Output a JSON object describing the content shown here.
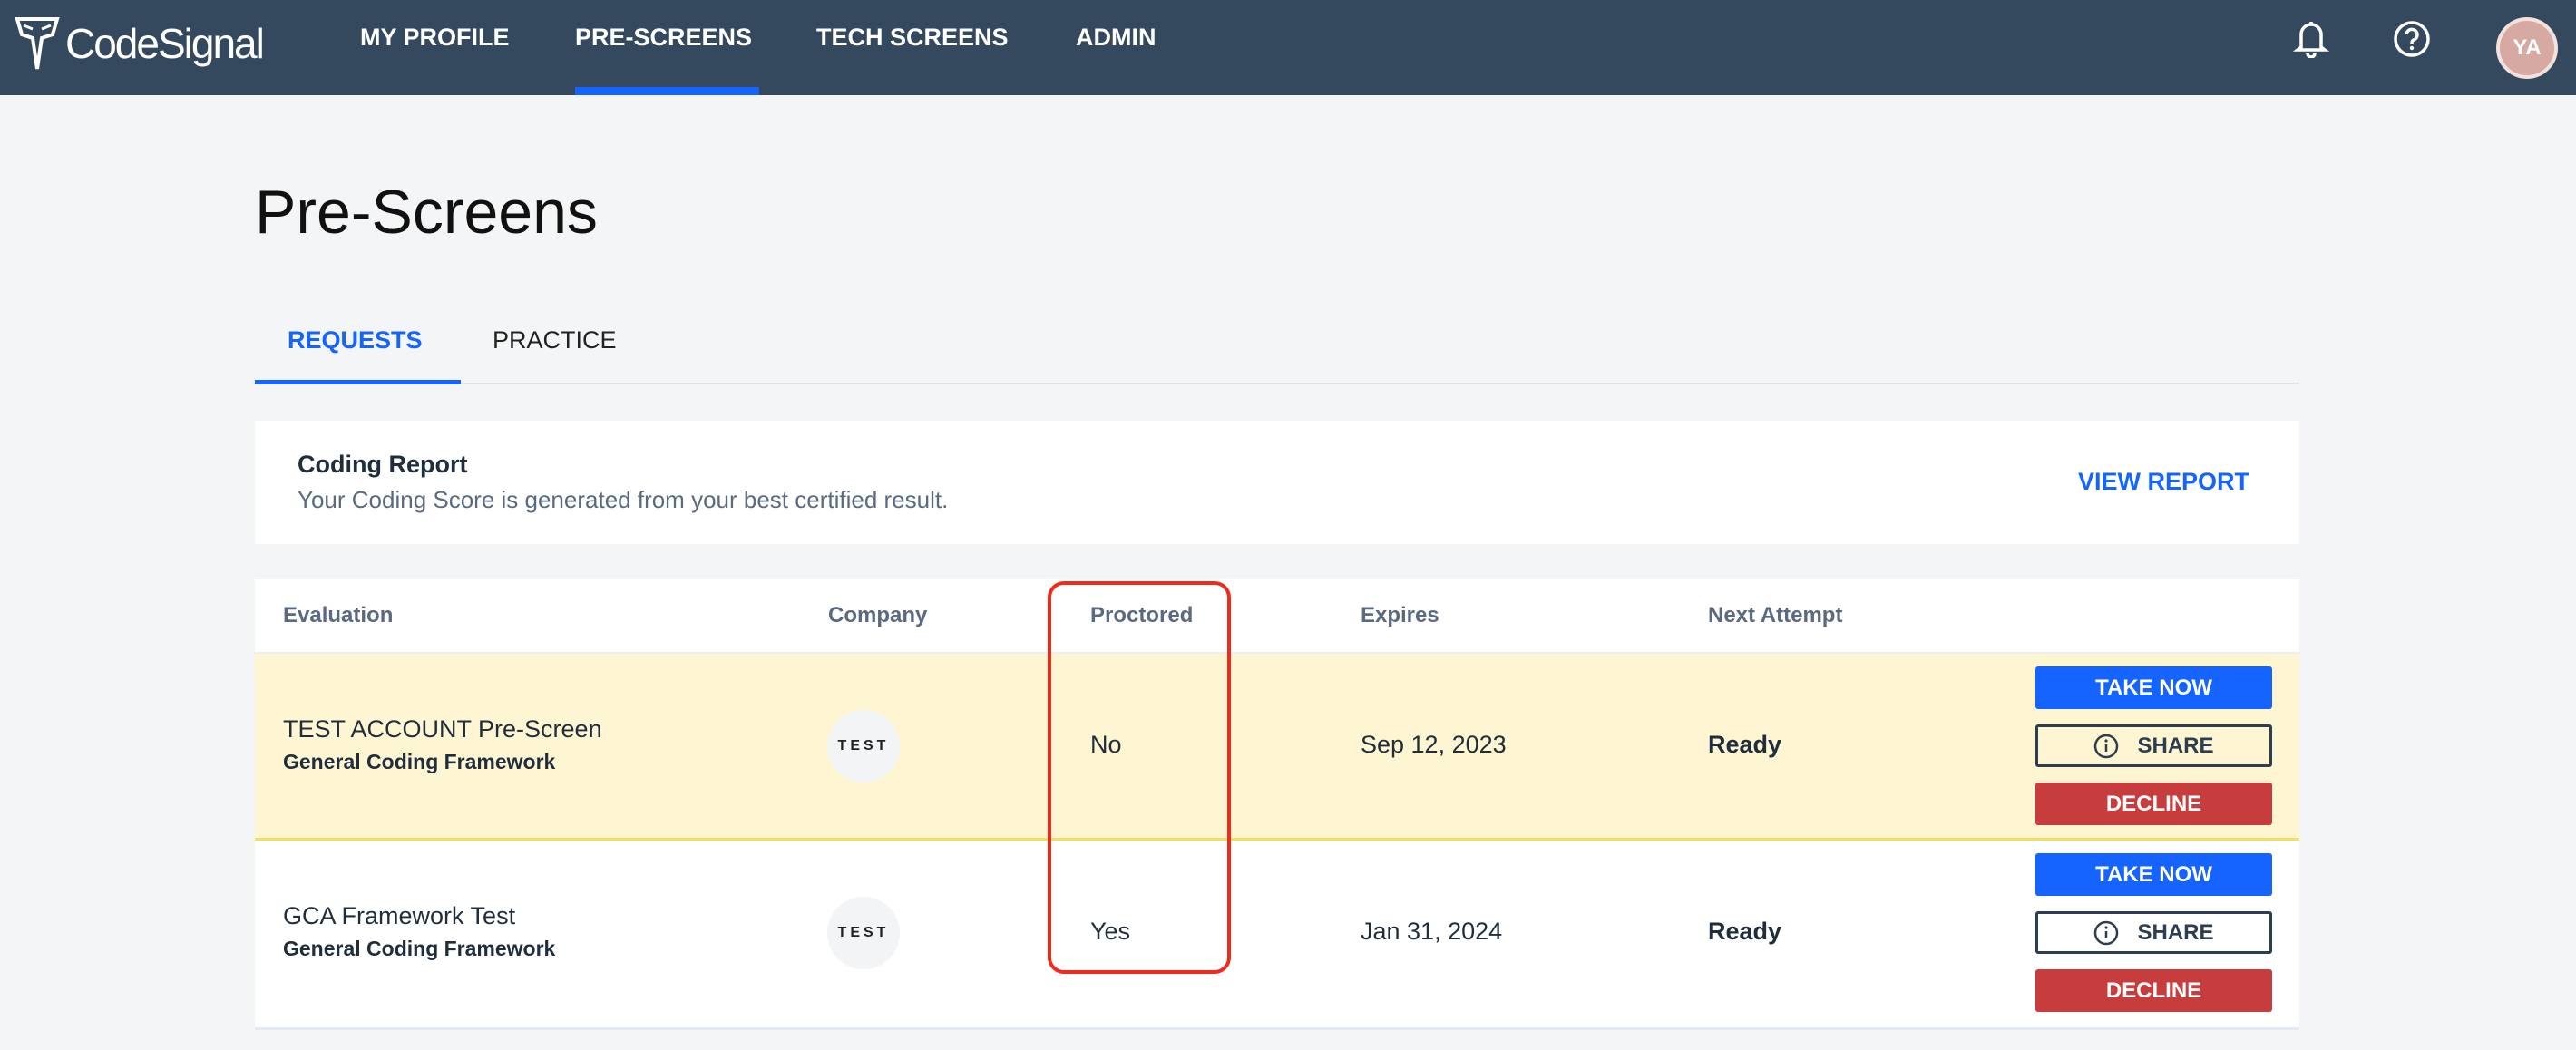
{
  "header": {
    "logo_text": "CodeSignal",
    "nav": [
      {
        "label": "MY PROFILE"
      },
      {
        "label": "PRE-SCREENS",
        "active": true
      },
      {
        "label": "TECH SCREENS"
      },
      {
        "label": "ADMIN"
      }
    ],
    "icons": [
      "bell-icon",
      "help-icon"
    ],
    "avatar_initials": "YA"
  },
  "page": {
    "title": "Pre-Screens",
    "tabs": [
      {
        "label": "REQUESTS",
        "active": true
      },
      {
        "label": "PRACTICE"
      }
    ]
  },
  "coding_report": {
    "title": "Coding Report",
    "subtitle": "Your Coding Score is generated from your best certified result.",
    "action": "VIEW REPORT"
  },
  "table": {
    "columns": [
      "Evaluation",
      "Company",
      "Proctored",
      "Expires",
      "Next Attempt"
    ],
    "rows": [
      {
        "title": "TEST ACCOUNT Pre-Screen",
        "framework": "General Coding Framework",
        "company_logo": "TEST",
        "proctored": "No",
        "expires": "Sep 12, 2023",
        "next_attempt": "Ready",
        "highlighted": true
      },
      {
        "title": "GCA Framework Test",
        "framework": "General Coding Framework",
        "company_logo": "TEST",
        "proctored": "Yes",
        "expires": "Jan 31, 2024",
        "next_attempt": "Ready"
      }
    ],
    "actions": {
      "take": "TAKE NOW",
      "share": "SHARE",
      "decline": "DECLINE"
    }
  },
  "colors": {
    "header": "#34495e",
    "accent": "#1564ff",
    "decline": "#c73c3c",
    "highlight_row": "#fef6d2",
    "annotation": "#f02a1c"
  }
}
